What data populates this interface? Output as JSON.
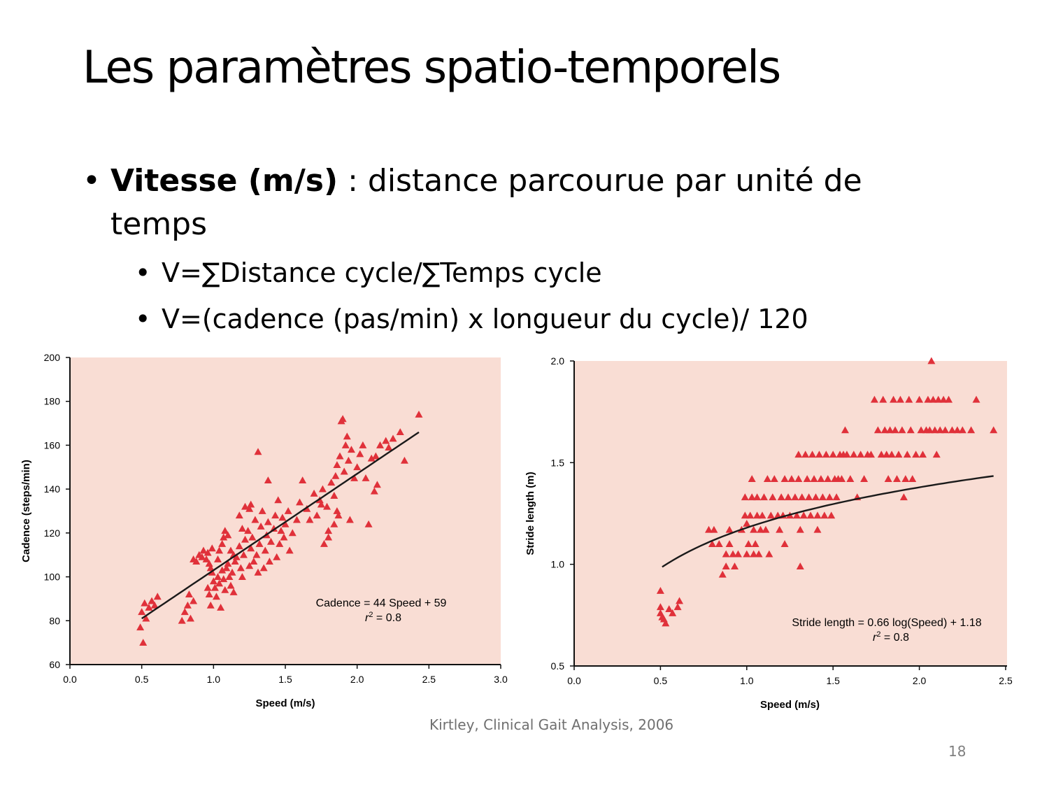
{
  "slide": {
    "title": "Les paramètres spatio-temporels",
    "bullet": {
      "bold": "Vitesse (m/s)",
      "rest": " : distance parcourue par unité de temps"
    },
    "subbullets": [
      "V=∑Distance cycle/∑Temps cycle",
      "V=(cadence (pas/min) x longueur du cycle)/ 120"
    ],
    "citation": "Kirtley, Clinical Gait Analysis, 2006",
    "page_number": "18"
  },
  "colors": {
    "plot_background": "#f9ddd4",
    "marker": "#e0313a",
    "fit_line": "#1a1a1a"
  },
  "chart_data": [
    {
      "type": "scatter",
      "xlabel": "Speed (m/s)",
      "ylabel": "Cadence (steps/min)",
      "xlim": [
        0,
        3
      ],
      "ylim": [
        60,
        200
      ],
      "xticks": [
        "0.0",
        "0.5",
        "1.0",
        "1.5",
        "2.0",
        "2.5",
        "3.0"
      ],
      "yticks": [
        "60",
        "80",
        "100",
        "120",
        "140",
        "160",
        "180",
        "200"
      ],
      "marker": "triangle",
      "annotation": {
        "equation": "Cadence = 44 Speed + 59",
        "r2_label": "r",
        "r2_sup": "2",
        "r2_value": " = 0.8"
      },
      "fit": {
        "kind": "linear",
        "slope": 44,
        "intercept": 59,
        "x_range": [
          0.5,
          2.43
        ]
      },
      "points": [
        [
          0.49,
          77
        ],
        [
          0.5,
          84
        ],
        [
          0.51,
          70
        ],
        [
          0.52,
          88
        ],
        [
          0.53,
          81
        ],
        [
          0.55,
          86
        ],
        [
          0.57,
          89
        ],
        [
          0.59,
          87
        ],
        [
          0.61,
          91
        ],
        [
          0.78,
          80
        ],
        [
          0.8,
          84
        ],
        [
          0.82,
          87
        ],
        [
          0.83,
          92
        ],
        [
          0.84,
          81
        ],
        [
          0.86,
          89
        ],
        [
          0.86,
          108
        ],
        [
          0.88,
          107
        ],
        [
          0.9,
          110
        ],
        [
          0.92,
          109
        ],
        [
          0.93,
          112
        ],
        [
          0.95,
          108
        ],
        [
          0.96,
          111
        ],
        [
          0.97,
          106
        ],
        [
          0.98,
          104
        ],
        [
          0.99,
          113
        ],
        [
          1.0,
          98
        ],
        [
          0.99,
          102
        ],
        [
          0.96,
          95
        ],
        [
          0.97,
          92
        ],
        [
          0.98,
          87
        ],
        [
          1.01,
          95
        ],
        [
          1.02,
          91
        ],
        [
          1.03,
          100
        ],
        [
          1.04,
          97
        ],
        [
          1.05,
          86
        ],
        [
          1.06,
          103
        ],
        [
          1.07,
          99
        ],
        [
          1.08,
          94
        ],
        [
          1.09,
          104
        ],
        [
          1.1,
          106
        ],
        [
          1.11,
          100
        ],
        [
          1.12,
          96
        ],
        [
          1.13,
          102
        ],
        [
          1.14,
          93
        ],
        [
          1.15,
          107
        ],
        [
          1.03,
          108
        ],
        [
          1.04,
          112
        ],
        [
          1.06,
          115
        ],
        [
          1.07,
          118
        ],
        [
          1.08,
          121
        ],
        [
          1.1,
          119
        ],
        [
          1.12,
          112
        ],
        [
          1.14,
          110
        ],
        [
          1.16,
          109
        ],
        [
          1.18,
          114
        ],
        [
          1.19,
          104
        ],
        [
          1.2,
          100
        ],
        [
          1.21,
          110
        ],
        [
          1.22,
          117
        ],
        [
          1.24,
          121
        ],
        [
          1.25,
          105
        ],
        [
          1.26,
          113
        ],
        [
          1.27,
          118
        ],
        [
          1.28,
          107
        ],
        [
          1.29,
          126
        ],
        [
          1.3,
          110
        ],
        [
          1.31,
          102
        ],
        [
          1.32,
          115
        ],
        [
          1.33,
          123
        ],
        [
          1.34,
          130
        ],
        [
          1.35,
          104
        ],
        [
          1.36,
          112
        ],
        [
          1.37,
          119
        ],
        [
          1.38,
          125
        ],
        [
          1.39,
          107
        ],
        [
          1.4,
          116
        ],
        [
          1.42,
          122
        ],
        [
          1.43,
          128
        ],
        [
          1.44,
          109
        ],
        [
          1.45,
          135
        ],
        [
          1.46,
          115
        ],
        [
          1.47,
          121
        ],
        [
          1.48,
          127
        ],
        [
          1.49,
          118
        ],
        [
          1.5,
          124
        ],
        [
          1.52,
          130
        ],
        [
          1.53,
          112
        ],
        [
          1.25,
          131
        ],
        [
          1.26,
          133
        ],
        [
          1.31,
          157
        ],
        [
          1.38,
          144
        ],
        [
          1.18,
          128
        ],
        [
          1.2,
          122
        ],
        [
          1.22,
          132
        ],
        [
          1.55,
          120
        ],
        [
          1.58,
          126
        ],
        [
          1.6,
          134
        ],
        [
          1.62,
          144
        ],
        [
          1.65,
          131
        ],
        [
          1.67,
          126
        ],
        [
          1.7,
          138
        ],
        [
          1.72,
          128
        ],
        [
          1.74,
          135
        ],
        [
          1.76,
          140
        ],
        [
          1.77,
          115
        ],
        [
          1.79,
          132
        ],
        [
          1.8,
          118
        ],
        [
          1.82,
          143
        ],
        [
          1.84,
          137
        ],
        [
          1.85,
          146
        ],
        [
          1.86,
          151
        ],
        [
          1.87,
          128
        ],
        [
          1.88,
          155
        ],
        [
          1.89,
          171
        ],
        [
          1.9,
          172
        ],
        [
          1.91,
          148
        ],
        [
          1.92,
          160
        ],
        [
          1.93,
          164
        ],
        [
          1.94,
          153
        ],
        [
          1.95,
          126
        ],
        [
          1.96,
          158
        ],
        [
          1.98,
          145
        ],
        [
          2.0,
          150
        ],
        [
          2.02,
          156
        ],
        [
          2.04,
          160
        ],
        [
          2.06,
          145
        ],
        [
          2.08,
          124
        ],
        [
          2.1,
          154
        ],
        [
          2.12,
          139
        ],
        [
          2.14,
          142
        ],
        [
          2.16,
          160
        ],
        [
          2.2,
          162
        ],
        [
          2.22,
          159
        ],
        [
          2.25,
          163
        ],
        [
          2.3,
          166
        ],
        [
          2.33,
          153
        ],
        [
          2.43,
          174
        ],
        [
          2.13,
          155
        ],
        [
          1.8,
          121
        ],
        [
          1.84,
          124
        ],
        [
          1.86,
          130
        ],
        [
          1.75,
          133
        ]
      ]
    },
    {
      "type": "scatter",
      "xlabel": "Speed (m/s)",
      "ylabel": "Stride length (m)",
      "xlim": [
        0,
        2.5
      ],
      "ylim": [
        0.5,
        2.0
      ],
      "xticks": [
        "0.0",
        "0.5",
        "1.0",
        "1.5",
        "2.0",
        "2.5"
      ],
      "yticks": [
        "0.5",
        "1.0",
        "1.5",
        "2.0"
      ],
      "marker": "triangle",
      "annotation": {
        "equation": "Stride length = 0.66 log(Speed) + 1.18",
        "r2_label": "r",
        "r2_sup": "2",
        "r2_value": " = 0.8"
      },
      "fit": {
        "kind": "log10",
        "coef": 0.66,
        "intercept": 1.18,
        "x_range": [
          0.51,
          2.43
        ]
      },
      "points": [
        [
          0.5,
          0.87
        ],
        [
          0.5,
          0.79
        ],
        [
          0.5,
          0.76
        ],
        [
          0.51,
          0.74
        ],
        [
          0.53,
          0.71
        ],
        [
          0.55,
          0.78
        ],
        [
          0.57,
          0.76
        ],
        [
          0.6,
          0.79
        ],
        [
          0.61,
          0.82
        ],
        [
          0.52,
          0.73
        ],
        [
          0.78,
          1.17
        ],
        [
          0.8,
          1.1
        ],
        [
          0.81,
          1.17
        ],
        [
          0.84,
          1.1
        ],
        [
          0.86,
          0.95
        ],
        [
          0.88,
          0.99
        ],
        [
          0.88,
          1.05
        ],
        [
          0.9,
          1.1
        ],
        [
          0.9,
          1.17
        ],
        [
          0.92,
          1.05
        ],
        [
          0.93,
          0.99
        ],
        [
          0.95,
          1.05
        ],
        [
          0.97,
          1.17
        ],
        [
          0.99,
          1.24
        ],
        [
          0.99,
          1.33
        ],
        [
          1.0,
          1.05
        ],
        [
          1.0,
          1.2
        ],
        [
          1.01,
          1.1
        ],
        [
          1.02,
          1.24
        ],
        [
          1.03,
          1.33
        ],
        [
          1.03,
          1.42
        ],
        [
          1.04,
          1.05
        ],
        [
          1.04,
          1.17
        ],
        [
          1.05,
          1.1
        ],
        [
          1.06,
          1.24
        ],
        [
          1.06,
          1.33
        ],
        [
          1.07,
          1.05
        ],
        [
          1.08,
          1.17
        ],
        [
          1.09,
          1.24
        ],
        [
          1.1,
          1.33
        ],
        [
          1.11,
          1.17
        ],
        [
          1.12,
          1.42
        ],
        [
          1.13,
          1.05
        ],
        [
          1.14,
          1.24
        ],
        [
          1.15,
          1.33
        ],
        [
          1.16,
          1.42
        ],
        [
          1.18,
          1.24
        ],
        [
          1.19,
          1.17
        ],
        [
          1.2,
          1.33
        ],
        [
          1.21,
          1.24
        ],
        [
          1.22,
          1.42
        ],
        [
          1.22,
          1.1
        ],
        [
          1.24,
          1.33
        ],
        [
          1.25,
          1.24
        ],
        [
          1.26,
          1.42
        ],
        [
          1.28,
          1.33
        ],
        [
          1.29,
          1.24
        ],
        [
          1.3,
          1.42
        ],
        [
          1.3,
          1.54
        ],
        [
          1.31,
          1.17
        ],
        [
          1.31,
          0.99
        ],
        [
          1.32,
          1.33
        ],
        [
          1.33,
          1.24
        ],
        [
          1.34,
          1.54
        ],
        [
          1.35,
          1.42
        ],
        [
          1.36,
          1.33
        ],
        [
          1.37,
          1.24
        ],
        [
          1.38,
          1.54
        ],
        [
          1.39,
          1.42
        ],
        [
          1.4,
          1.33
        ],
        [
          1.41,
          1.24
        ],
        [
          1.41,
          1.17
        ],
        [
          1.42,
          1.54
        ],
        [
          1.43,
          1.42
        ],
        [
          1.44,
          1.33
        ],
        [
          1.45,
          1.24
        ],
        [
          1.46,
          1.54
        ],
        [
          1.47,
          1.42
        ],
        [
          1.48,
          1.33
        ],
        [
          1.49,
          1.24
        ],
        [
          1.5,
          1.54
        ],
        [
          1.51,
          1.42
        ],
        [
          1.52,
          1.33
        ],
        [
          1.53,
          1.42
        ],
        [
          1.54,
          1.54
        ],
        [
          1.55,
          1.42
        ],
        [
          1.56,
          1.54
        ],
        [
          1.57,
          1.66
        ],
        [
          1.58,
          1.54
        ],
        [
          1.6,
          1.42
        ],
        [
          1.62,
          1.54
        ],
        [
          1.64,
          1.33
        ],
        [
          1.66,
          1.54
        ],
        [
          1.68,
          1.42
        ],
        [
          1.7,
          1.54
        ],
        [
          1.72,
          1.54
        ],
        [
          1.74,
          1.81
        ],
        [
          1.76,
          1.66
        ],
        [
          1.78,
          1.54
        ],
        [
          1.79,
          1.81
        ],
        [
          1.8,
          1.66
        ],
        [
          1.81,
          1.54
        ],
        [
          1.82,
          1.42
        ],
        [
          1.83,
          1.66
        ],
        [
          1.84,
          1.54
        ],
        [
          1.85,
          1.81
        ],
        [
          1.86,
          1.66
        ],
        [
          1.87,
          1.42
        ],
        [
          1.88,
          1.54
        ],
        [
          1.89,
          1.81
        ],
        [
          1.9,
          1.66
        ],
        [
          1.91,
          1.33
        ],
        [
          1.92,
          1.42
        ],
        [
          1.93,
          1.54
        ],
        [
          1.94,
          1.81
        ],
        [
          1.95,
          1.66
        ],
        [
          1.96,
          1.42
        ],
        [
          1.98,
          1.54
        ],
        [
          2.0,
          1.81
        ],
        [
          2.01,
          1.66
        ],
        [
          2.02,
          1.54
        ],
        [
          2.04,
          1.66
        ],
        [
          2.05,
          1.81
        ],
        [
          2.06,
          1.66
        ],
        [
          2.07,
          2.0
        ],
        [
          2.08,
          1.81
        ],
        [
          2.09,
          1.66
        ],
        [
          2.1,
          1.54
        ],
        [
          2.11,
          1.81
        ],
        [
          2.12,
          1.66
        ],
        [
          2.14,
          1.81
        ],
        [
          2.15,
          1.66
        ],
        [
          2.17,
          1.81
        ],
        [
          2.19,
          1.66
        ],
        [
          2.22,
          1.66
        ],
        [
          2.25,
          1.66
        ],
        [
          2.3,
          1.66
        ],
        [
          2.33,
          1.81
        ],
        [
          2.43,
          1.66
        ]
      ]
    }
  ]
}
